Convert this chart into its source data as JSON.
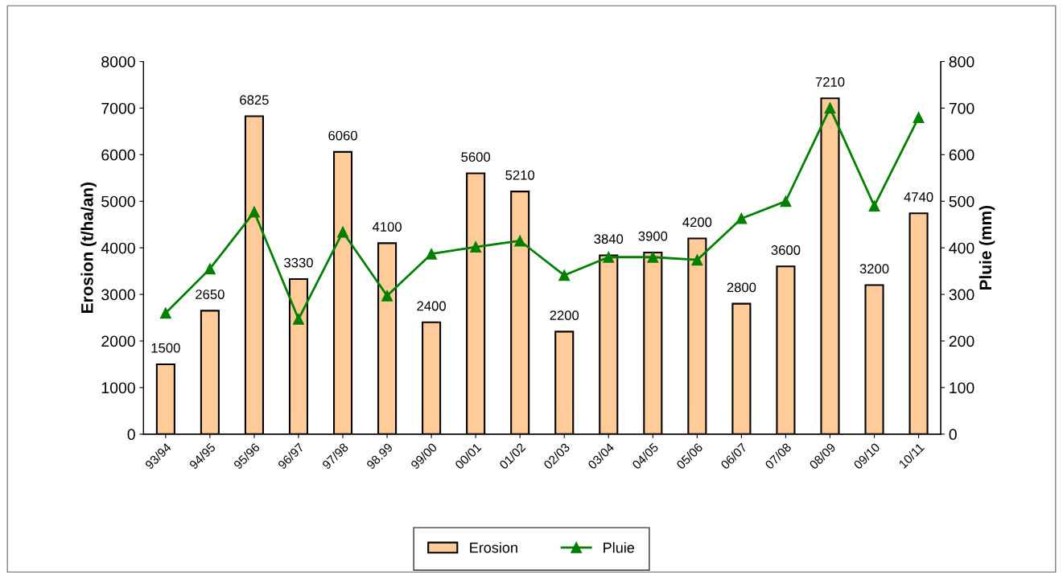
{
  "chart_data": {
    "type": "bar",
    "ylabel": "Erosion (t/ha/an)",
    "y2label": "Pluie (mm)",
    "categories": [
      "93/94",
      "94/95",
      "95/96",
      "96/97",
      "97/98",
      "98.99",
      "99/00",
      "00/01",
      "01/02",
      "02/03",
      "03/04",
      "04/05",
      "05/06",
      "06/07",
      "07/08",
      "08/09",
      "09/10",
      "10/11"
    ],
    "series": [
      {
        "name": "Erosion",
        "color": "#ffcc99",
        "data_labels": true,
        "values": [
          1500,
          2650,
          6825,
          3330,
          6060,
          4100,
          2400,
          5600,
          5210,
          2200,
          3840,
          3900,
          4200,
          2800,
          3600,
          7210,
          3200,
          4740
        ]
      },
      {
        "name": "Pluie",
        "type": "line",
        "axis": "y2",
        "color": "#008000",
        "marker": "triangle",
        "line_style": "solid",
        "values": [
          260,
          355,
          477,
          247,
          434,
          297,
          387,
          402,
          415,
          341,
          380,
          380,
          374,
          463,
          500,
          700,
          490,
          680
        ]
      }
    ],
    "ylim": [
      0,
      8000
    ],
    "yticks": [
      0,
      1000,
      2000,
      3000,
      4000,
      5000,
      6000,
      7000,
      8000
    ],
    "y2lim": [
      0,
      800
    ],
    "y2ticks": [
      0,
      100,
      200,
      300,
      400,
      500,
      600,
      700,
      800
    ],
    "grid": false,
    "legend": "bottom"
  }
}
